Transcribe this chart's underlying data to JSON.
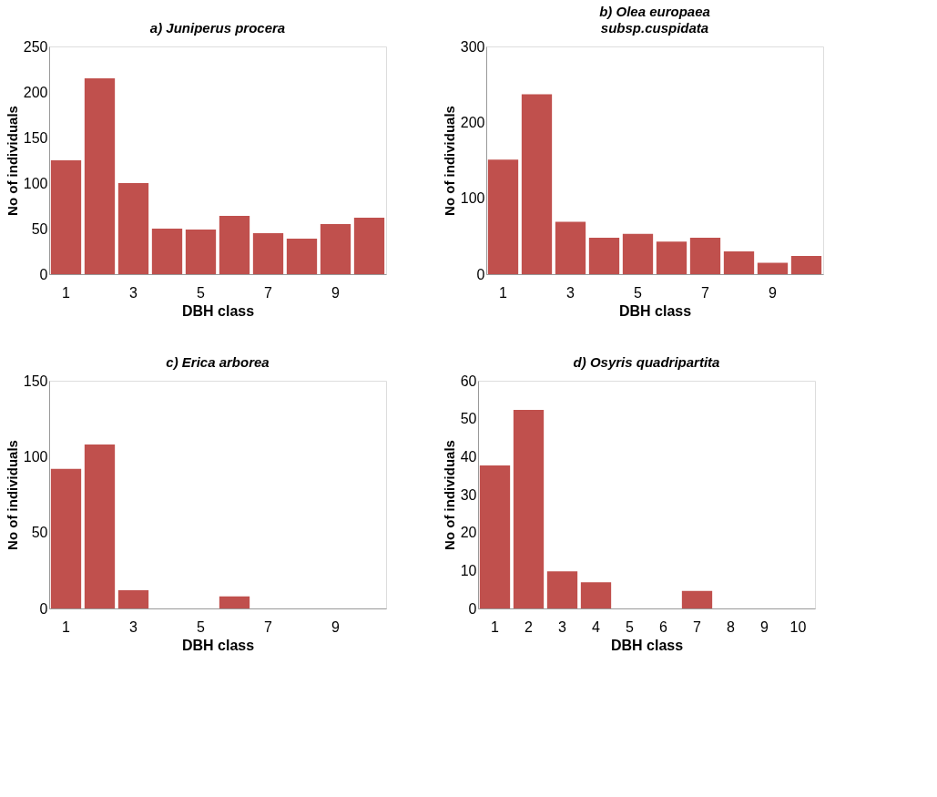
{
  "chart_data": [
    {
      "type": "bar",
      "title": "a) Juniperus procera",
      "xlabel": "DBH class",
      "ylabel": "No of individuals",
      "categories": [
        "1",
        null,
        "3",
        null,
        "5",
        null,
        "7",
        null,
        "9",
        null
      ],
      "values": [
        125,
        215,
        100,
        50,
        49,
        64,
        45,
        39,
        55,
        62
      ],
      "color": "#c0504d",
      "ylim": [
        0,
        250
      ],
      "yticks": [
        0,
        50,
        100,
        150,
        200,
        250
      ],
      "grid": false
    },
    {
      "type": "bar",
      "title": "b) Olea europaea",
      "subtitle": "subsp.cuspidata",
      "xlabel": "DBH class",
      "ylabel": "No of individuals",
      "categories": [
        "1",
        null,
        "3",
        null,
        "5",
        null,
        "7",
        null,
        "9",
        null
      ],
      "values": [
        151,
        237,
        69,
        48,
        53,
        43,
        48,
        30,
        15,
        24
      ],
      "color": "#c0504d",
      "ylim": [
        0,
        300
      ],
      "yticks": [
        0,
        100,
        200,
        300
      ],
      "grid": false
    },
    {
      "type": "bar",
      "title": "c) Erica arborea",
      "xlabel": "DBH class",
      "ylabel": "No of individuals",
      "categories": [
        "1",
        null,
        "3",
        null,
        "5",
        null,
        "7",
        null,
        "9",
        null
      ],
      "values": [
        92,
        108,
        12,
        0,
        0,
        8,
        0,
        0,
        0,
        0
      ],
      "color": "#c0504d",
      "ylim": [
        0,
        150
      ],
      "yticks": [
        0,
        50,
        100,
        150
      ],
      "grid": false
    },
    {
      "type": "bar",
      "title": "d) Osyris quadripartita",
      "xlabel": "DBH class",
      "ylabel": "No of individuals",
      "categories": [
        "1",
        "2",
        "3",
        "4",
        "5",
        "6",
        "7",
        "8",
        "9",
        "10"
      ],
      "values": [
        37.7,
        52.3,
        9.8,
        6.9,
        0,
        0,
        4.6,
        0,
        0,
        0
      ],
      "color": "#c0504d",
      "ylim": [
        0,
        60
      ],
      "yticks": [
        0,
        10,
        20,
        30,
        40,
        50,
        60
      ],
      "grid": false
    }
  ]
}
